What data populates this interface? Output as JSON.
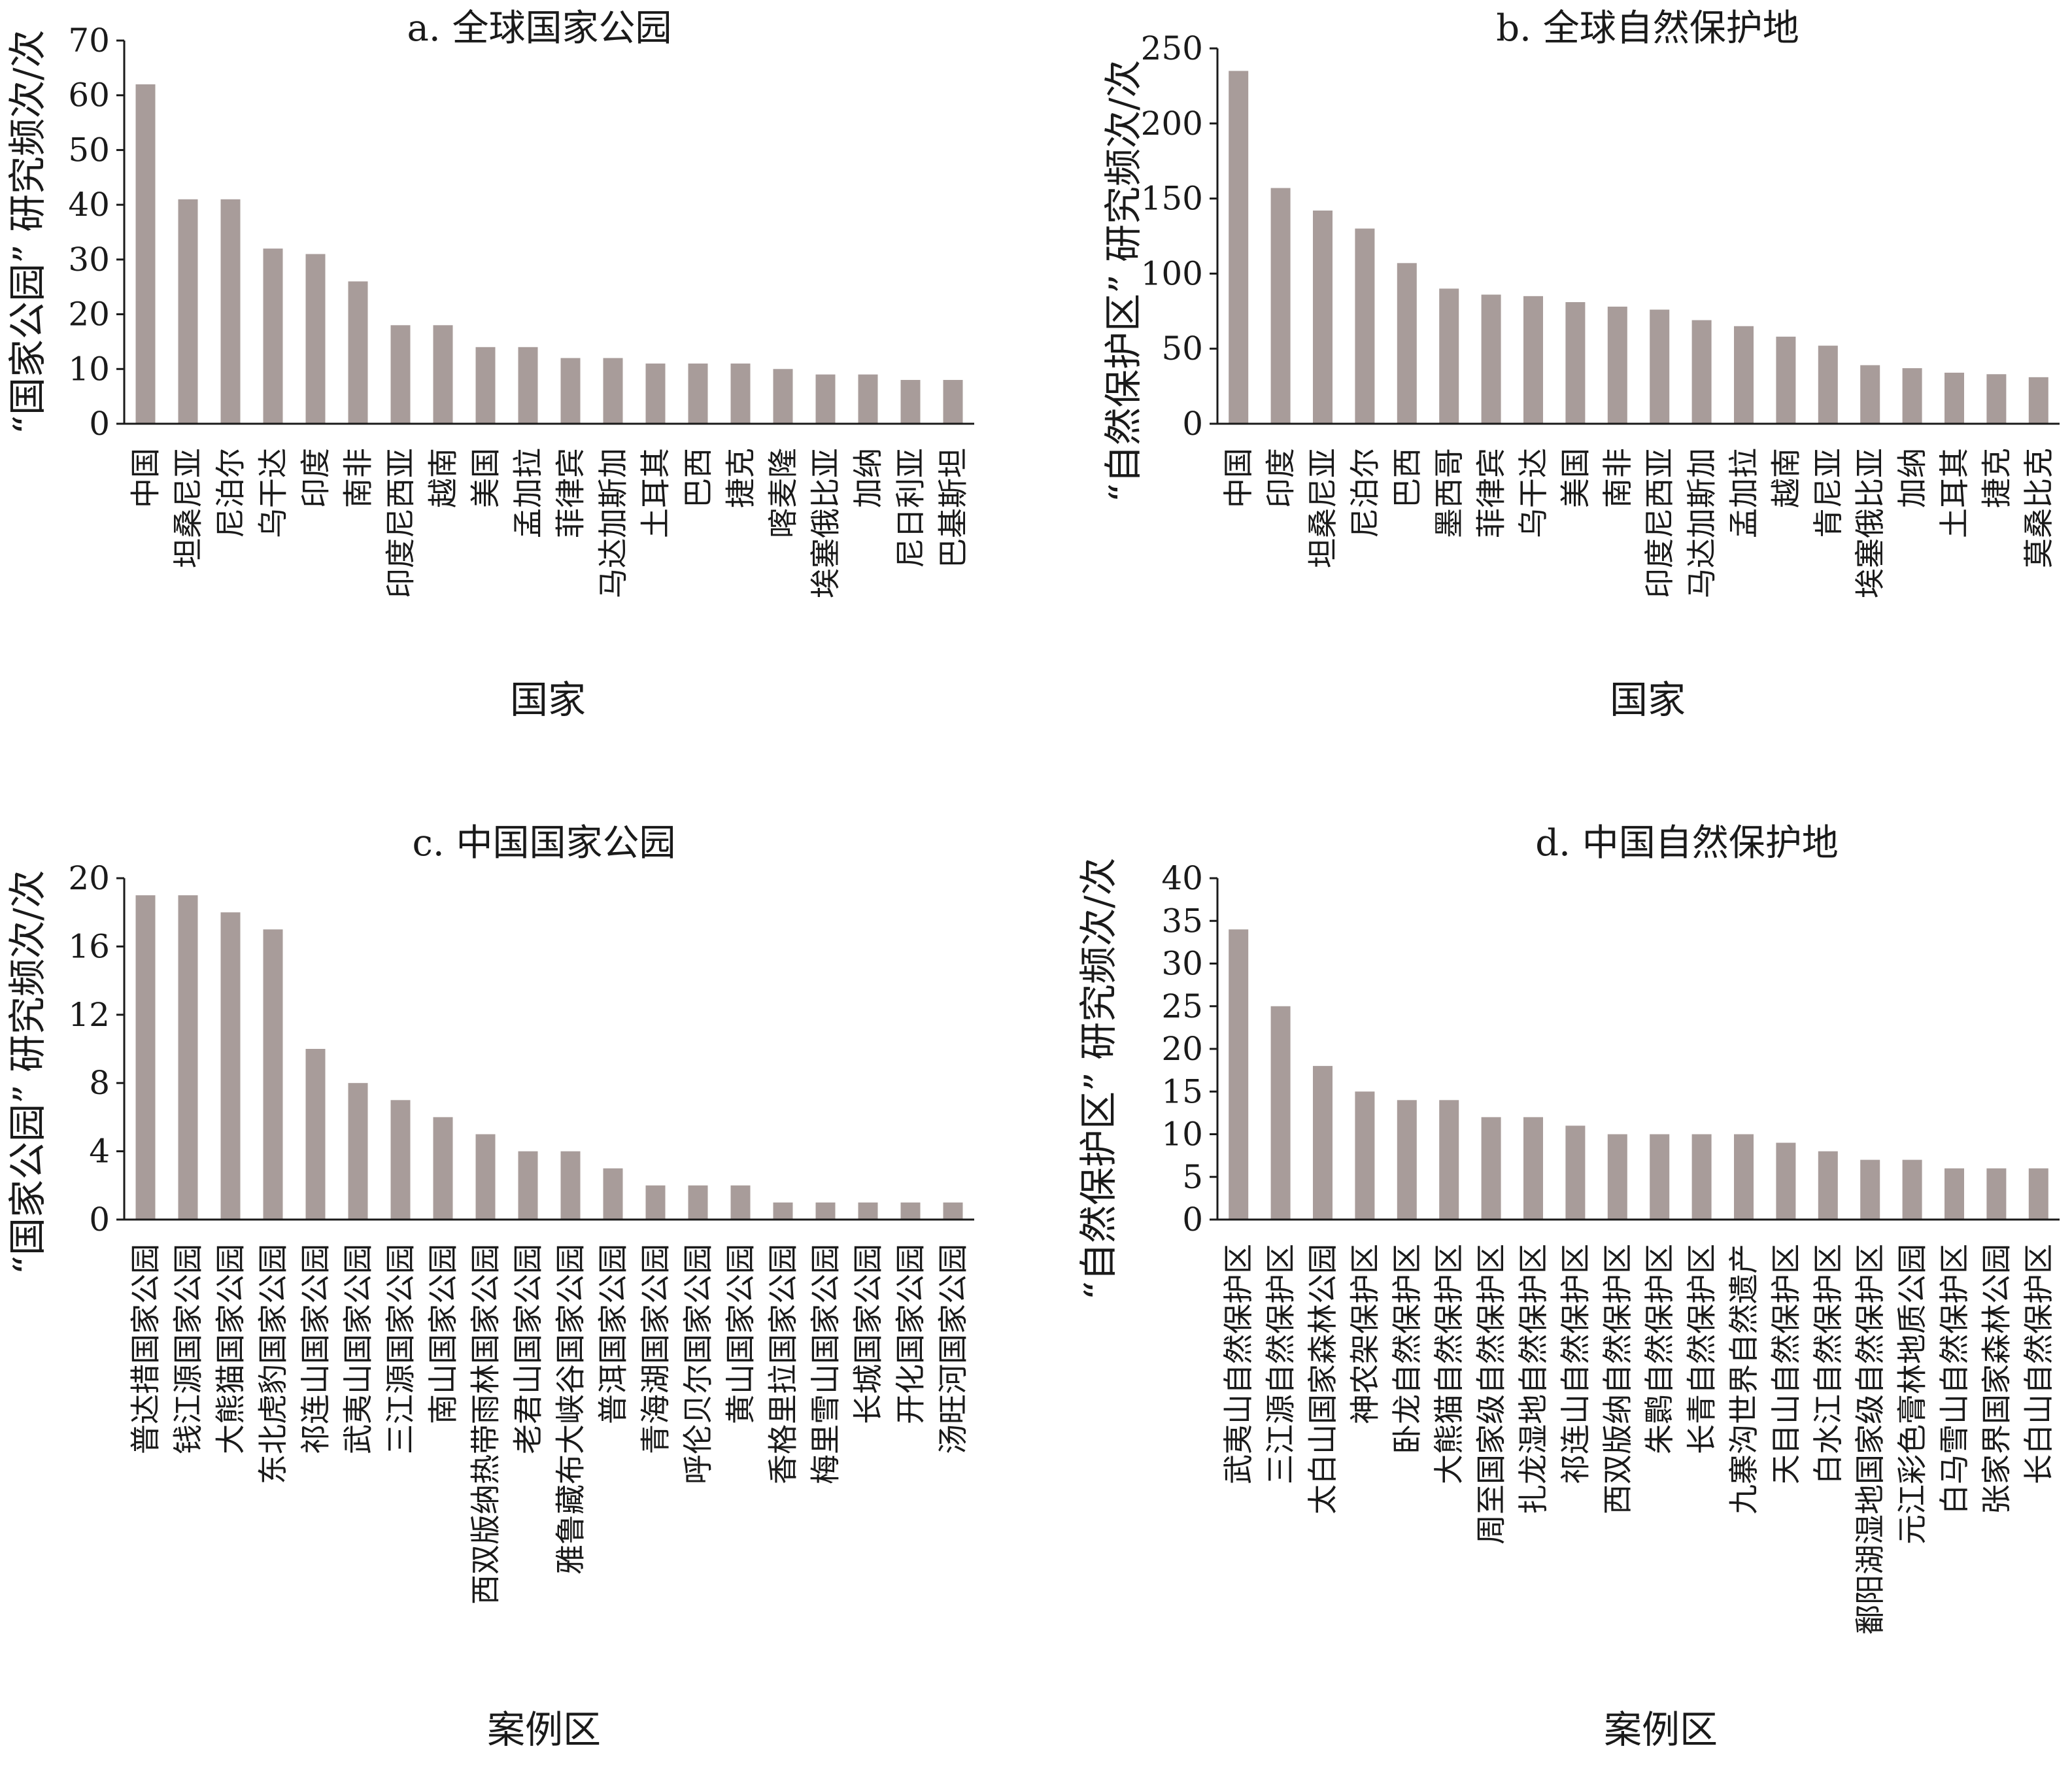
{
  "colors": {
    "bar": "#a89c9a",
    "axis": "#1a1a1a"
  },
  "chart_data": [
    {
      "type": "bar",
      "title": "a. 全球国家公园",
      "xlabel": "国家",
      "ylabel": "“国家公园” 研究频次/次",
      "ylim": [
        0,
        70
      ],
      "yticks": [
        0,
        10,
        20,
        30,
        40,
        50,
        60,
        70
      ],
      "categories": [
        "中国",
        "坦桑尼亚",
        "尼泊尔",
        "乌干达",
        "印度",
        "南非",
        "印度尼西亚",
        "越南",
        "美国",
        "孟加拉",
        "菲律宾",
        "马达加斯加",
        "土耳其",
        "巴西",
        "捷克",
        "喀麦隆",
        "埃塞俄比亚",
        "加纳",
        "尼日利亚",
        "巴基斯坦"
      ],
      "values": [
        62,
        41,
        41,
        32,
        31,
        26,
        18,
        18,
        14,
        14,
        12,
        12,
        11,
        11,
        11,
        10,
        9,
        9,
        8,
        8
      ]
    },
    {
      "type": "bar",
      "title": "b. 全球自然保护地",
      "xlabel": "国家",
      "ylabel": "“自然保护区” 研究频次/次",
      "ylim": [
        0,
        250
      ],
      "yticks": [
        0,
        50,
        100,
        150,
        200,
        250
      ],
      "categories": [
        "中国",
        "印度",
        "坦桑尼亚",
        "尼泊尔",
        "巴西",
        "墨西哥",
        "菲律宾",
        "乌干达",
        "美国",
        "南非",
        "印度尼西亚",
        "马达加斯加",
        "孟加拉",
        "越南",
        "肯尼亚",
        "埃塞俄比亚",
        "加纳",
        "土耳其",
        "捷克",
        "莫桑比克"
      ],
      "values": [
        235,
        157,
        142,
        130,
        107,
        90,
        86,
        85,
        81,
        78,
        76,
        69,
        65,
        58,
        52,
        39,
        37,
        34,
        33,
        31
      ]
    },
    {
      "type": "bar",
      "title": "c. 中国国家公园",
      "xlabel": "案例区",
      "ylabel": "“国家公园” 研究频次/次",
      "ylim": [
        0,
        20
      ],
      "yticks": [
        0,
        4,
        8,
        12,
        16,
        20
      ],
      "categories": [
        "普达措国家公园",
        "钱江源国家公园",
        "大熊猫国家公园",
        "东北虎豹国家公园",
        "祁连山国家公园",
        "武夷山国家公园",
        "三江源国家公园",
        "南山国家公园",
        "西双版纳热带雨林国家公园",
        "老君山国家公园",
        "雅鲁藏布大峡谷国家公园",
        "普洱国家公园",
        "青海湖国家公园",
        "呼伦贝尔国家公园",
        "黄山国家公园",
        "香格里拉国家公园",
        "梅里雪山国家公园",
        "长城国家公园",
        "开化国家公园",
        "汤旺河国家公园"
      ],
      "values": [
        19,
        19,
        18,
        17,
        10,
        8,
        7,
        6,
        5,
        4,
        4,
        3,
        2,
        2,
        2,
        1,
        1,
        1,
        1,
        1
      ]
    },
    {
      "type": "bar",
      "title": "d. 中国自然保护地",
      "xlabel": "案例区",
      "ylabel": "“自然保护区” 研究频次/次",
      "ylim": [
        0,
        40
      ],
      "yticks": [
        0,
        5,
        10,
        15,
        20,
        25,
        30,
        35,
        40
      ],
      "categories": [
        "武夷山自然保护区",
        "三江源自然保护区",
        "太白山国家森林公园",
        "神农架保护区",
        "卧龙自然保护区",
        "大熊猫自然保护区",
        "周至国家级自然保护区",
        "扎龙湿地自然保护区",
        "祁连山自然保护区",
        "西双版纳自然保护区",
        "朱鹮自然保护区",
        "长青自然保护区",
        "九寨沟世界自然遗产",
        "天目山自然保护区",
        "白水江自然保护区",
        "鄱阳湖湿地国家级自然保护区",
        "元江彩色膏林地质公园",
        "白马雪山自然保护区",
        "张家界国家森林公园",
        "长白山自然保护区"
      ],
      "values": [
        34,
        25,
        18,
        15,
        14,
        14,
        12,
        12,
        11,
        10,
        10,
        10,
        10,
        9,
        8,
        7,
        7,
        6,
        6,
        6
      ]
    }
  ]
}
